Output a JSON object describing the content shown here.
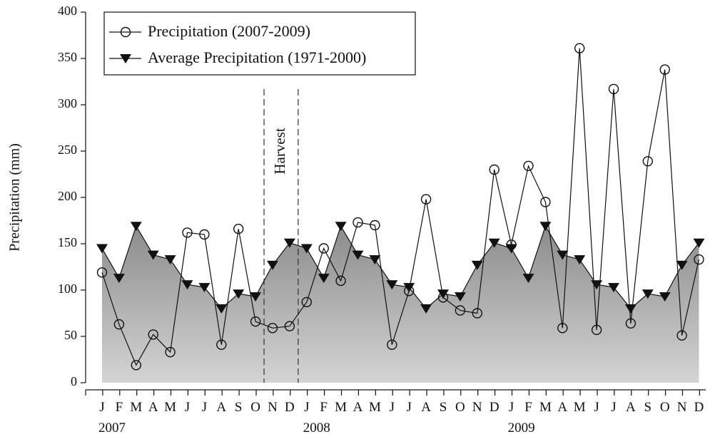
{
  "chart_data": {
    "type": "line",
    "ylabel": "Precipitation (mm)",
    "xlabel": "",
    "ylim": [
      0,
      400
    ],
    "yticks": [
      0,
      50,
      100,
      150,
      200,
      250,
      300,
      350,
      400
    ],
    "month_labels": [
      "J",
      "F",
      "M",
      "A",
      "M",
      "J",
      "J",
      "A",
      "S",
      "O",
      "N",
      "D",
      "J",
      "F",
      "M",
      "A",
      "M",
      "J",
      "J",
      "A",
      "S",
      "O",
      "N",
      "D",
      "J",
      "F",
      "M",
      "A",
      "M",
      "J",
      "J",
      "A",
      "S",
      "O",
      "N",
      "D"
    ],
    "year_labels": [
      {
        "text": "2007",
        "month_index": 0
      },
      {
        "text": "2008",
        "month_index": 12
      },
      {
        "text": "2009",
        "month_index": 24
      }
    ],
    "series": [
      {
        "name": "Precipitation (2007-2009)",
        "marker": "open-circle",
        "values": [
          119,
          63,
          19,
          52,
          33,
          162,
          160,
          41,
          166,
          66,
          59,
          61,
          87,
          145,
          110,
          173,
          170,
          41,
          99,
          198,
          92,
          78,
          75,
          230,
          149,
          234,
          195,
          59,
          361,
          57,
          317,
          64,
          239,
          338,
          51,
          133
        ]
      },
      {
        "name": "Average Precipitation (1971-2000)",
        "marker": "filled-down-triangle",
        "shaded": true,
        "values": [
          145,
          113,
          169,
          138,
          133,
          106,
          103,
          80,
          96,
          93,
          127,
          151,
          145,
          113,
          169,
          138,
          133,
          106,
          103,
          80,
          96,
          93,
          127,
          151,
          145,
          113,
          169,
          138,
          133,
          106,
          103,
          80,
          96,
          93,
          127,
          151
        ]
      }
    ],
    "annotation": {
      "text": "Harvest",
      "from_month_index": 9.5,
      "to_month_index": 11.5
    },
    "legend_position": "top-left",
    "grid": false
  }
}
